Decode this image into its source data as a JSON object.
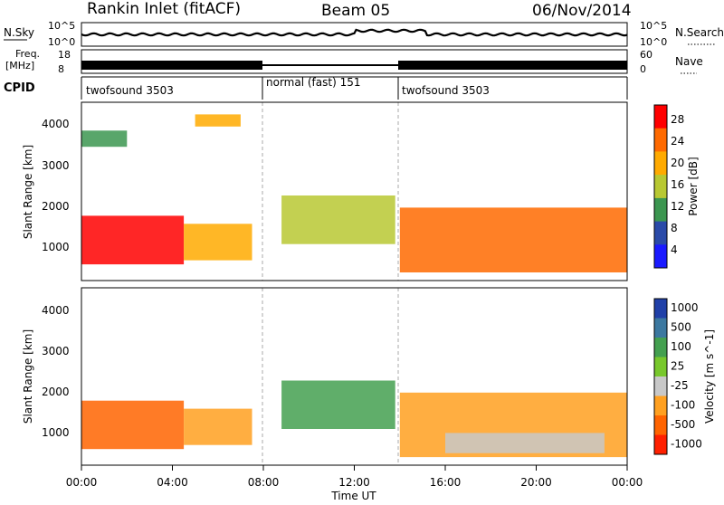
{
  "header": {
    "station": "Rankin Inlet (fitACF)",
    "beam": "Beam 05",
    "date": "06/Nov/2014"
  },
  "noise_panel": {
    "left_label": "N.Sky",
    "right_label": "N.Search",
    "left_ticks": [
      "10^5",
      "10^0"
    ],
    "right_ticks": [
      "10^5",
      "10^0"
    ]
  },
  "freq_panel": {
    "label_line1": "Freq.",
    "label_line2": "[MHz]",
    "left_ticks": [
      "18",
      "8"
    ],
    "right_label": "Nave",
    "right_ticks": [
      "60",
      "0"
    ]
  },
  "cpid": {
    "label": "CPID",
    "segments": [
      {
        "text": "twofsound 3503",
        "start_hour": 0,
        "end_hour": 8
      },
      {
        "text": "normal (fast) 151",
        "start_hour": 8,
        "end_hour": 14
      },
      {
        "text": "twofsound 3503",
        "start_hour": 14,
        "end_hour": 24
      }
    ]
  },
  "x_axis": {
    "label": "Time UT",
    "ticks": [
      "00:00",
      "04:00",
      "08:00",
      "12:00",
      "16:00",
      "20:00",
      "00:00"
    ]
  },
  "power_panel": {
    "ylabel": "Slant Range [km]",
    "yticks": [
      "4000",
      "3000",
      "2000",
      "1000"
    ],
    "colorbar_label": "Power [dB]",
    "colorbar_ticks": [
      "28",
      "24",
      "20",
      "16",
      "12",
      "8",
      "4"
    ],
    "colors": [
      "#ff0000",
      "#ff6a00",
      "#ffaa00",
      "#b8c832",
      "#3c9650",
      "#2a4aa8",
      "#1a1aff"
    ]
  },
  "velocity_panel": {
    "ylabel": "Slant Range [km]",
    "yticks": [
      "4000",
      "3000",
      "2000",
      "1000"
    ],
    "colorbar_label": "Velocity [m s^-1]",
    "colorbar_ticks": [
      "1000",
      "500",
      "100",
      "25",
      "-25",
      "-100",
      "-500",
      "-1000"
    ],
    "colors": [
      "#2040a8",
      "#3c78a0",
      "#44a050",
      "#78c82c",
      "#c8c8c8",
      "#ffa020",
      "#ff6400",
      "#ff2000"
    ]
  },
  "chart_data": {
    "type": "heatmap",
    "title": "Rankin Inlet (fitACF)",
    "xlabel": "Time UT",
    "xlim": [
      0,
      24
    ],
    "ylim": [
      200,
      4600
    ],
    "power_echo_regions_dB": [
      {
        "t0": 0,
        "t1": 4.5,
        "r0": 600,
        "r1": 1800,
        "value": 28
      },
      {
        "t0": 4.5,
        "t1": 7.5,
        "r0": 700,
        "r1": 1600,
        "value": 22
      },
      {
        "t0": 8.8,
        "t1": 13.8,
        "r0": 1100,
        "r1": 2300,
        "value": 16
      },
      {
        "t0": 14,
        "t1": 24,
        "r0": 400,
        "r1": 2000,
        "value": 26
      },
      {
        "t0": 5,
        "t1": 7,
        "r0": 4000,
        "r1": 4300,
        "value": 20
      },
      {
        "t0": 0,
        "t1": 2,
        "r0": 3500,
        "r1": 3900,
        "value": 12
      }
    ],
    "velocity_echo_regions_ms": [
      {
        "t0": 0,
        "t1": 4.5,
        "r0": 600,
        "r1": 1800,
        "value": -300
      },
      {
        "t0": 4.5,
        "t1": 7.5,
        "r0": 700,
        "r1": 1600,
        "value": -100
      },
      {
        "t0": 8.8,
        "t1": 13.8,
        "r0": 1100,
        "r1": 2300,
        "value": 200
      },
      {
        "t0": 14,
        "t1": 24,
        "r0": 400,
        "r1": 2000,
        "value": -150
      },
      {
        "t0": 16,
        "t1": 23,
        "r0": 500,
        "r1": 1000,
        "value": 0
      }
    ]
  }
}
